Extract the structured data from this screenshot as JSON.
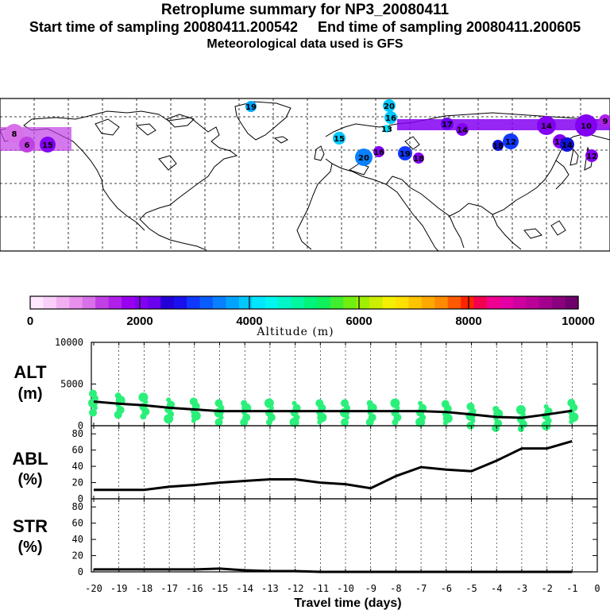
{
  "header": {
    "title": "Retroplume summary for NP3_20080411",
    "sampling": "Start time of sampling 20080411.200542     End time of sampling 20080411.200605",
    "met": "Meteorological data used is GFS"
  },
  "colorbar": {
    "label": "Altitude (m)",
    "ticks": [
      "0",
      "2000",
      "4000",
      "6000",
      "8000",
      "10000"
    ],
    "colors": [
      "#ffe8ff",
      "#fad0fa",
      "#f2b0f2",
      "#e890ee",
      "#d870ea",
      "#c040e6",
      "#b020ea",
      "#9a00f0",
      "#8400f2",
      "#6a00ee",
      "#2400d8",
      "#1a10f0",
      "#1038ff",
      "#0a5cff",
      "#0880ff",
      "#00a4ff",
      "#00c8ff",
      "#00e6ff",
      "#00f6ee",
      "#00f6c8",
      "#00f6a0",
      "#00f47a",
      "#10f05a",
      "#40ee30",
      "#70ee10",
      "#a0ee00",
      "#ccee00",
      "#f2f000",
      "#ffe000",
      "#ffc400",
      "#ffa800",
      "#ff8a00",
      "#ff5a00",
      "#ff2400",
      "#f40050",
      "#f00090",
      "#e400a4",
      "#d000a0",
      "#ba0098",
      "#a4008e",
      "#8a007e",
      "#6e006e"
    ]
  },
  "map": {
    "bubbles": [
      {
        "label": "19",
        "color": "#00a4ff"
      },
      {
        "label": "20",
        "color": "#00c8ff"
      },
      {
        "label": "16",
        "color": "#00c8ff"
      },
      {
        "label": "13",
        "color": "#00e6ff"
      },
      {
        "label": "15",
        "color": "#00c8ff"
      },
      {
        "label": "20",
        "color": "#0880ff"
      },
      {
        "label": "16",
        "color": "#8400f2"
      },
      {
        "label": "19",
        "color": "#1038ff"
      },
      {
        "label": "18",
        "color": "#8400f2"
      },
      {
        "label": "14",
        "color": "#8400f2"
      },
      {
        "label": "10",
        "color": "#8400f2"
      },
      {
        "label": "12",
        "color": "#1038ff"
      },
      {
        "label": "14",
        "color": "#8400f2"
      },
      {
        "label": "11",
        "color": "#8400f2"
      },
      {
        "label": "17",
        "color": "#6a00ee"
      },
      {
        "label": "18",
        "color": "#1010d8"
      },
      {
        "label": "12",
        "color": "#8400f2"
      },
      {
        "label": "9",
        "color": "#b020ea"
      },
      {
        "label": "8",
        "color": "#d870ea"
      },
      {
        "label": "6",
        "color": "#c040e6"
      },
      {
        "label": "15",
        "color": "#8400f2"
      },
      {
        "label": "14",
        "color": "#1010d8"
      }
    ]
  },
  "panels": {
    "alt": {
      "label_line1": "ALT",
      "label_line2": "(m)",
      "yticks": [
        "10000",
        "5000",
        "0"
      ]
    },
    "abl": {
      "label_line1": "ABL",
      "label_line2": "(%)",
      "yticks": [
        "80",
        "60",
        "40",
        "20",
        "0"
      ]
    },
    "str": {
      "label_line1": "STR",
      "label_line2": "(%)",
      "yticks": [
        "80",
        "60",
        "40",
        "20",
        "0"
      ]
    }
  },
  "xaxis": {
    "label": "Travel time (days)",
    "ticks": [
      "-20",
      "-19",
      "-18",
      "-17",
      "-16",
      "-15",
      "-14",
      "-13",
      "-12",
      "-11",
      "-10",
      "-9",
      "-8",
      "-7",
      "-6",
      "-5",
      "-4",
      "-3",
      "-2",
      "-1",
      "0"
    ]
  },
  "chart_data": [
    {
      "type": "line",
      "title": "ALT",
      "xlabel": "Travel time (days)",
      "ylabel": "ALT (m)",
      "x": [
        -20,
        -19,
        -18,
        -17,
        -16,
        -15,
        -14,
        -13,
        -12,
        -11,
        -10,
        -9,
        -8,
        -7,
        -6,
        -5,
        -4,
        -3,
        -2,
        -1
      ],
      "values": [
        2900,
        2650,
        2450,
        2150,
        1950,
        1750,
        1750,
        1750,
        1750,
        1750,
        1750,
        1750,
        1750,
        1750,
        1650,
        1350,
        1050,
        950,
        1350,
        1800
      ],
      "xlim": [
        -20,
        0
      ],
      "ylim": [
        0,
        10000
      ]
    },
    {
      "type": "line",
      "title": "ABL",
      "xlabel": "Travel time (days)",
      "ylabel": "ABL (%)",
      "x": [
        -20,
        -19,
        -18,
        -17,
        -16,
        -15,
        -14,
        -13,
        -12,
        -11,
        -10,
        -9,
        -8,
        -7,
        -6,
        -5,
        -4,
        -3,
        -2,
        -1
      ],
      "values": [
        11,
        11,
        11,
        15,
        17,
        20,
        22,
        24,
        24,
        20,
        18,
        13,
        28,
        39,
        36,
        34,
        47,
        62,
        62,
        71
      ],
      "xlim": [
        -20,
        0
      ],
      "ylim": [
        0,
        90
      ]
    },
    {
      "type": "line",
      "title": "STR",
      "xlabel": "Travel time (days)",
      "ylabel": "STR (%)",
      "x": [
        -20,
        -19,
        -18,
        -17,
        -16,
        -15,
        -14,
        -13,
        -12,
        -11,
        -10,
        -9,
        -8,
        -7,
        -6,
        -5,
        -4,
        -3,
        -2,
        -1
      ],
      "values": [
        3,
        3,
        3,
        3,
        3,
        4,
        2,
        1,
        1,
        0,
        0,
        0,
        0,
        0,
        0,
        0,
        0,
        0,
        0,
        0
      ],
      "xlim": [
        -20,
        0
      ],
      "ylim": [
        0,
        90
      ]
    }
  ]
}
